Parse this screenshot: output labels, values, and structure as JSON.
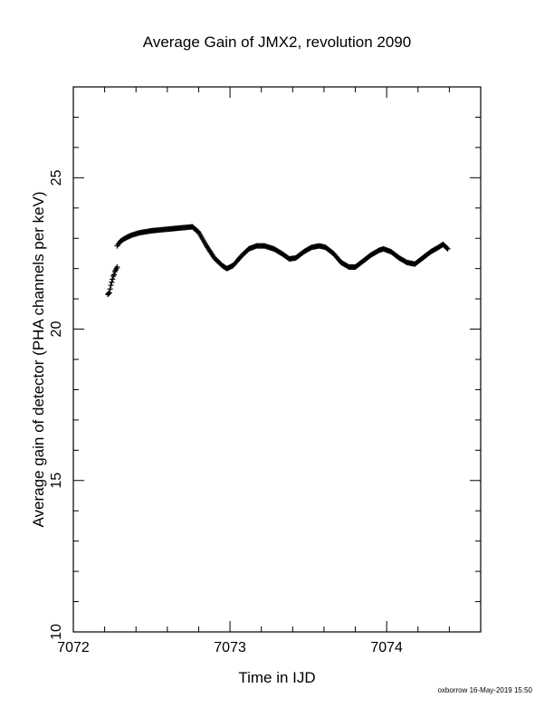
{
  "chart_data": {
    "type": "scatter",
    "title": "Average Gain of JMX2, revolution 2090",
    "xlabel": "Time in IJD",
    "ylabel": "Average gain of detector (PHA channels per keV)",
    "xlim": [
      7072,
      7074.6
    ],
    "ylim": [
      10,
      28
    ],
    "xticks": [
      7072,
      7073,
      7074
    ],
    "yticks": [
      10,
      15,
      20,
      25
    ],
    "grid": false,
    "marker": "+",
    "color": "#000000",
    "series": [
      {
        "points": [
          [
            7072.22,
            21.15
          ],
          [
            7072.23,
            21.2
          ],
          [
            7072.24,
            21.45
          ],
          [
            7072.245,
            21.55
          ],
          [
            7072.25,
            21.65
          ],
          [
            7072.255,
            21.75
          ],
          [
            7072.26,
            21.8
          ],
          [
            7072.265,
            21.9
          ],
          [
            7072.27,
            21.95
          ],
          [
            7072.275,
            22.0
          ],
          [
            7072.28,
            22.05
          ]
        ]
      },
      {
        "points": [
          [
            7072.28,
            22.75
          ],
          [
            7072.3,
            22.9
          ],
          [
            7072.33,
            23.0
          ],
          [
            7072.37,
            23.1
          ],
          [
            7072.42,
            23.18
          ],
          [
            7072.5,
            23.25
          ],
          [
            7072.6,
            23.3
          ],
          [
            7072.7,
            23.35
          ],
          [
            7072.76,
            23.38
          ],
          [
            7072.8,
            23.2
          ],
          [
            7072.85,
            22.75
          ],
          [
            7072.9,
            22.35
          ],
          [
            7072.95,
            22.1
          ],
          [
            7072.98,
            22.0
          ],
          [
            7073.02,
            22.1
          ],
          [
            7073.07,
            22.4
          ],
          [
            7073.12,
            22.65
          ],
          [
            7073.17,
            22.75
          ],
          [
            7073.22,
            22.75
          ],
          [
            7073.28,
            22.65
          ],
          [
            7073.33,
            22.5
          ],
          [
            7073.38,
            22.32
          ],
          [
            7073.42,
            22.35
          ],
          [
            7073.47,
            22.55
          ],
          [
            7073.52,
            22.7
          ],
          [
            7073.57,
            22.75
          ],
          [
            7073.61,
            22.7
          ],
          [
            7073.66,
            22.5
          ],
          [
            7073.71,
            22.2
          ],
          [
            7073.76,
            22.05
          ],
          [
            7073.8,
            22.05
          ],
          [
            7073.85,
            22.25
          ],
          [
            7073.9,
            22.45
          ],
          [
            7073.95,
            22.6
          ],
          [
            7073.98,
            22.65
          ],
          [
            7074.03,
            22.55
          ],
          [
            7074.08,
            22.35
          ],
          [
            7074.13,
            22.2
          ],
          [
            7074.18,
            22.15
          ],
          [
            7074.23,
            22.35
          ],
          [
            7074.28,
            22.55
          ],
          [
            7074.33,
            22.7
          ],
          [
            7074.36,
            22.8
          ],
          [
            7074.39,
            22.65
          ]
        ]
      }
    ]
  },
  "footer": "oxborrow 16-May-2019 15:50"
}
